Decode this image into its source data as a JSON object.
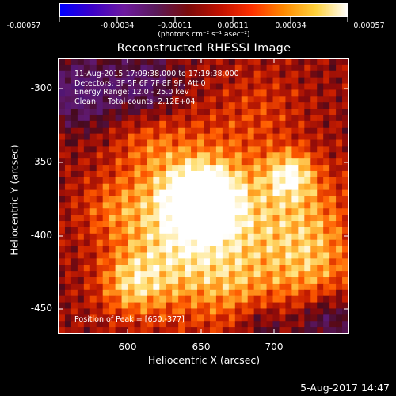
{
  "colorbar": {
    "tick_labels": [
      "-0.00057",
      "-0.00034",
      "-0.00011",
      "0.00011",
      "0.00034",
      "0.00057"
    ],
    "units": "(photons cm⁻² s⁻¹ asec⁻²)",
    "colors": [
      "#0000ff",
      "#3c00c8",
      "#6e1aa0",
      "#5a1a5a",
      "#7a0a0a",
      "#c01000",
      "#ff3000",
      "#ff8a00",
      "#ffd23c",
      "#ffffff"
    ]
  },
  "title": "Reconstructed RHESSI Image",
  "info": {
    "line1": "11-Aug-2015 17:09:38.000 to 17:19:38.000",
    "line2": "Detectors: 3F 5F 6F 7F 8F 9F, Att 0",
    "line3": "Energy Range: 12.0 - 25.0 keV",
    "line4": "Clean     Total counts: 2.12E+04",
    "peak": "Position of Peak = [650,-377]"
  },
  "axes": {
    "xlabel": "Heliocentric X (arcsec)",
    "ylabel": "Heliocentric Y (arcsec)",
    "xticks": [
      "600",
      "650",
      "700"
    ],
    "yticks": [
      "-300",
      "-350",
      "-400",
      "-450"
    ],
    "x_range": [
      553,
      744
    ],
    "y_range": [
      -481,
      -281
    ]
  },
  "timestamp": "5-Aug-2017 14:47"
}
